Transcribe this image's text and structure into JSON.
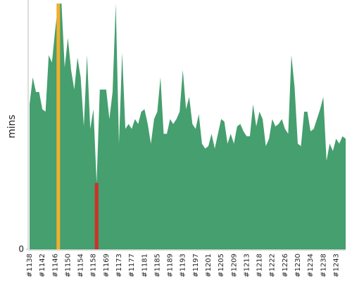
{
  "chart_data": {
    "type": "area",
    "y_label": "mins",
    "color": "#459f6e",
    "categories": [
      "#1138",
      null,
      null,
      null,
      "#1142",
      null,
      null,
      null,
      "#1146",
      null,
      null,
      null,
      "#1150",
      null,
      null,
      null,
      "#1154",
      null,
      null,
      null,
      "#1158",
      null,
      null,
      null,
      "#1169",
      null,
      null,
      null,
      "#1173",
      null,
      null,
      null,
      "#1177",
      null,
      null,
      null,
      "#1181",
      null,
      null,
      null,
      "#1185",
      null,
      null,
      null,
      "#1189",
      null,
      null,
      null,
      "#1193",
      null,
      null,
      null,
      "#1197",
      null,
      null,
      null,
      "#1201",
      null,
      null,
      null,
      "#1205",
      null,
      null,
      null,
      "#1209",
      null,
      null,
      null,
      "#1213",
      null,
      null,
      null,
      "#1218",
      null,
      null,
      null,
      "#1222",
      null,
      null,
      null,
      "#1226",
      null,
      null,
      null,
      "#1230",
      null,
      null,
      null,
      "#1234",
      null,
      null,
      null,
      "#1238",
      null,
      null,
      null,
      "#1243",
      null,
      null,
      null
    ],
    "values": [
      59,
      70,
      64,
      64,
      57,
      56,
      79,
      76,
      89,
      100,
      100,
      74,
      86,
      73,
      65,
      78,
      70,
      50,
      79,
      49,
      57,
      27,
      65,
      65,
      65,
      53,
      64,
      100,
      43,
      80,
      49,
      51,
      49,
      53,
      51,
      56,
      57,
      51,
      43,
      53,
      56,
      70,
      47,
      47,
      53,
      51,
      53,
      56,
      73,
      57,
      62,
      51,
      49,
      55,
      43,
      41,
      42,
      47,
      41,
      47,
      53,
      52,
      43,
      47,
      43,
      50,
      51,
      48,
      46,
      46,
      59,
      50,
      56,
      53,
      42,
      45,
      53,
      50,
      51,
      53,
      49,
      47,
      79,
      66,
      43,
      42,
      56,
      56,
      48,
      49,
      53,
      57,
      62,
      36,
      43,
      40,
      45,
      43,
      46,
      45
    ],
    "highlights": [
      {
        "index": 9,
        "color": "#f0b030"
      },
      {
        "index": 21,
        "color": "#d0302c"
      }
    ],
    "ylim": [
      0,
      100
    ],
    "yticks": [
      0
    ]
  }
}
